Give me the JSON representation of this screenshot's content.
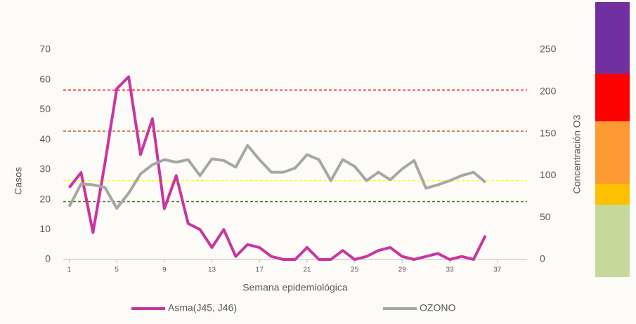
{
  "chart_data": {
    "type": "line",
    "xlabel": "Semana epidemiológica",
    "ylabel": "Casos",
    "y2label": "Concentración O3",
    "x": [
      1,
      2,
      3,
      4,
      5,
      6,
      7,
      8,
      9,
      10,
      11,
      12,
      13,
      14,
      15,
      16,
      17,
      18,
      19,
      20,
      21,
      22,
      23,
      24,
      25,
      26,
      27,
      28,
      29,
      30,
      31,
      32,
      33,
      34,
      35,
      36
    ],
    "xlim": [
      0.5,
      39.5
    ],
    "xticks": [
      1,
      5,
      9,
      13,
      17,
      21,
      25,
      29,
      33,
      37
    ],
    "ylim": [
      0,
      70
    ],
    "yticks": [
      0,
      10,
      20,
      30,
      40,
      50,
      60,
      70
    ],
    "y2lim": [
      0,
      250
    ],
    "y2ticks": [
      0,
      50,
      100,
      150,
      200,
      250
    ],
    "grid": false,
    "legend": "bottom",
    "series": [
      {
        "name": "Asma(J45, J46)",
        "color": "#c8369f",
        "values": [
          24,
          29,
          9,
          32,
          57,
          61,
          35,
          47,
          17,
          28,
          12,
          10,
          4,
          10,
          1,
          5,
          4,
          1,
          0,
          0,
          4,
          0,
          0,
          3,
          0,
          1,
          3,
          4,
          1,
          0,
          1,
          2,
          0,
          1,
          0,
          8
        ]
      },
      {
        "name": "OZONO",
        "color": "#a6a6a6",
        "axis": "y2",
        "values": [
          63,
          90,
          89,
          86,
          61,
          79,
          102,
          113,
          119,
          116,
          119,
          100,
          120,
          118,
          110,
          136,
          119,
          104,
          104,
          109,
          125,
          119,
          94,
          119,
          111,
          94,
          104,
          95,
          108,
          118,
          85,
          89,
          94,
          100,
          104,
          92
        ]
      }
    ],
    "thresholds": [
      {
        "value": 202,
        "color": "#ff0000"
      },
      {
        "value": 153,
        "color": "#c55a11"
      },
      {
        "value": 94,
        "color": "#ffff00"
      },
      {
        "value": 69,
        "color": "#38761d"
      }
    ]
  }
}
